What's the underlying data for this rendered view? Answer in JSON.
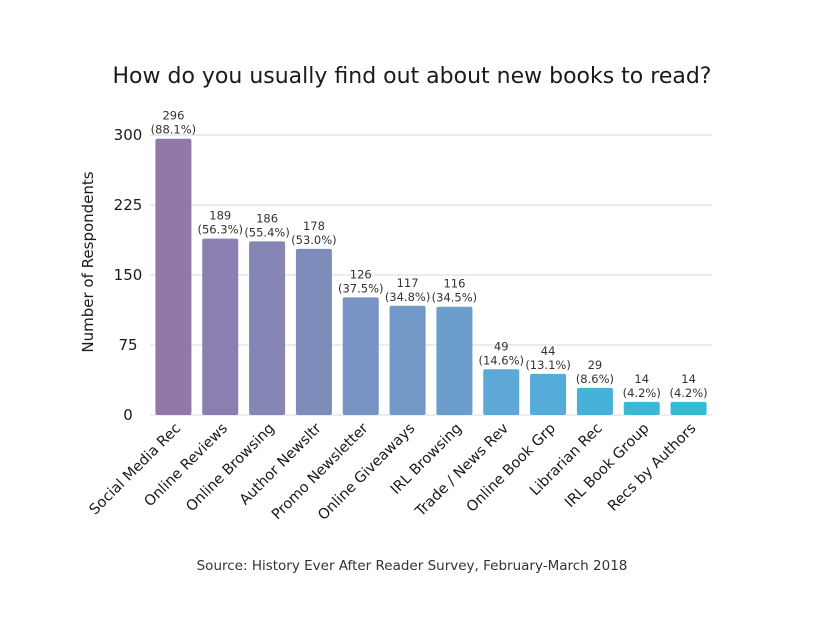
{
  "chart_data": {
    "type": "bar",
    "title": "How do you usually find out about new books to read?",
    "ylabel": "Number of Respondents",
    "xlabel": "",
    "ylim": [
      0,
      300
    ],
    "yticks": [
      0,
      75,
      150,
      225,
      300
    ],
    "grid": true,
    "source": "Source: History Ever After Reader Survey, February-March 2018",
    "categories": [
      "Social Media Rec",
      "Online Reviews",
      "Online Browsing",
      "Author Newsltr",
      "Promo Newsletter",
      "Online Giveaways",
      "IRL Browsing",
      "Trade / News Rev",
      "Online Book Grp",
      "Librarian Rec",
      "IRL Book Group",
      "Recs by Authors"
    ],
    "values": [
      296,
      189,
      186,
      178,
      126,
      117,
      116,
      49,
      44,
      29,
      14,
      14
    ],
    "percent_labels": [
      "(88.1%)",
      "(56.3%)",
      "(55.4%)",
      "(53.0%)",
      "(37.5%)",
      "(34.8%)",
      "(34.5%)",
      "(14.6%)",
      "(13.1%)",
      "(8.6%)",
      "(4.2%)",
      "(4.2%)"
    ],
    "colors": [
      "#9178a8",
      "#8b7eb0",
      "#8585b6",
      "#7e8cbc",
      "#7894c4",
      "#7299c7",
      "#6b9ecb",
      "#5da8d6",
      "#55acd9",
      "#46b1d9",
      "#3db6d8",
      "#34bbd6"
    ]
  }
}
